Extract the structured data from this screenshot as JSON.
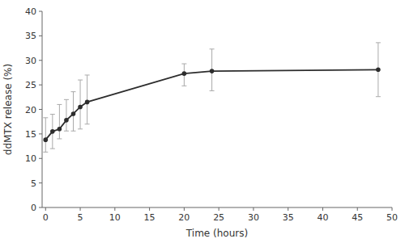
{
  "chart_data": {
    "type": "line",
    "xlabel": "Time (hours)",
    "ylabel": "ddMTX release (%)",
    "x": [
      0,
      1,
      2,
      3,
      4,
      5,
      6,
      20,
      24,
      48
    ],
    "values": [
      13.8,
      15.5,
      16.0,
      17.8,
      19.1,
      20.5,
      21.5,
      27.3,
      27.8,
      28.1
    ],
    "yerr_low": [
      2.5,
      3.5,
      2.0,
      2.2,
      3.5,
      4.5,
      4.5,
      2.5,
      4.0,
      5.5
    ],
    "yerr_high": [
      4.5,
      3.5,
      5.0,
      4.2,
      4.5,
      5.5,
      5.5,
      2.0,
      4.5,
      5.5
    ],
    "xlim": [
      -0.5,
      50
    ],
    "ylim": [
      0,
      40
    ],
    "xticks": [
      0,
      5,
      10,
      15,
      20,
      25,
      30,
      35,
      40,
      45,
      50
    ],
    "yticks": [
      0,
      5,
      10,
      15,
      20,
      25,
      30,
      35,
      40
    ],
    "color": "#2d2d2d",
    "marker": "circle",
    "line_style": "solid",
    "grid": false
  }
}
